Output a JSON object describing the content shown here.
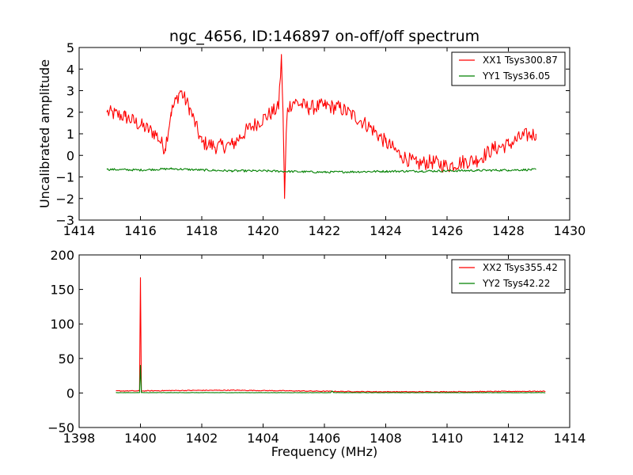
{
  "colors": {
    "xx": "#ff0000",
    "yy": "#008000",
    "frame": "#000000",
    "background": "#ffffff"
  },
  "chart_data": [
    {
      "type": "line",
      "title": "ngc_4656, ID:146897 on-off/off spectrum",
      "xlabel": "",
      "ylabel": "Uncalibrated amplitude",
      "xlim": [
        1414,
        1430
      ],
      "ylim": [
        -3,
        5
      ],
      "xticks": [
        1414,
        1416,
        1418,
        1420,
        1422,
        1424,
        1426,
        1428,
        1430
      ],
      "yticks": [
        -3,
        -2,
        -1,
        0,
        1,
        2,
        3,
        4,
        5
      ],
      "x_tick_labels": [
        "1414",
        "1416",
        "1418",
        "1420",
        "1422",
        "1424",
        "1426",
        "1428",
        "1430"
      ],
      "y_tick_labels": [
        "−3",
        "−2",
        "−1",
        "0",
        "1",
        "2",
        "3",
        "4",
        "5"
      ],
      "legend_position": "top-right",
      "series": [
        {
          "name": "XX1 Tsys300.87",
          "color": "#ff0000",
          "noise": 0.35,
          "x": [
            1414.9,
            1415.5,
            1416.0,
            1416.5,
            1416.8,
            1417.0,
            1417.3,
            1417.6,
            1418.0,
            1418.5,
            1419.0,
            1419.5,
            1420.0,
            1420.5,
            1420.6,
            1420.65,
            1420.7,
            1420.75,
            1420.8,
            1421.0,
            1421.5,
            1422.0,
            1422.5,
            1423.0,
            1423.5,
            1424.0,
            1424.5,
            1425.0,
            1425.5,
            1426.0,
            1426.5,
            1427.0,
            1427.5,
            1428.0,
            1428.5,
            1428.9
          ],
          "y": [
            2.0,
            1.8,
            1.4,
            1.0,
            0.3,
            2.0,
            3.0,
            2.2,
            0.6,
            0.4,
            0.5,
            1.2,
            1.7,
            2.2,
            4.5,
            2.0,
            -2.0,
            0.8,
            2.2,
            2.5,
            2.2,
            2.3,
            2.2,
            1.8,
            1.3,
            0.6,
            0.0,
            -0.4,
            -0.3,
            -0.5,
            -0.3,
            -0.2,
            0.3,
            0.5,
            0.9,
            1.0
          ]
        },
        {
          "name": "YY1 Tsys36.05",
          "color": "#008000",
          "noise": 0.05,
          "x": [
            1414.9,
            1416.0,
            1417.0,
            1418.0,
            1419.0,
            1420.0,
            1421.0,
            1422.0,
            1423.0,
            1424.0,
            1425.0,
            1426.0,
            1427.0,
            1428.0,
            1428.9
          ],
          "y": [
            -0.65,
            -0.68,
            -0.62,
            -0.68,
            -0.72,
            -0.72,
            -0.75,
            -0.78,
            -0.76,
            -0.74,
            -0.73,
            -0.72,
            -0.7,
            -0.68,
            -0.66
          ]
        }
      ]
    },
    {
      "type": "line",
      "title": "",
      "xlabel": "Frequency (MHz)",
      "ylabel": "",
      "xlim": [
        1398,
        1414
      ],
      "ylim": [
        -50,
        200
      ],
      "xticks": [
        1398,
        1400,
        1402,
        1404,
        1406,
        1408,
        1410,
        1412,
        1414
      ],
      "yticks": [
        -50,
        0,
        50,
        100,
        150,
        200
      ],
      "x_tick_labels": [
        "1398",
        "1400",
        "1402",
        "1404",
        "1406",
        "1408",
        "1410",
        "1412",
        "1414"
      ],
      "y_tick_labels": [
        "−50",
        "0",
        "50",
        "100",
        "150",
        "200"
      ],
      "legend_position": "top-right",
      "series": [
        {
          "name": "XX2 Tsys355.42",
          "color": "#ff0000",
          "noise": 0.6,
          "x": [
            1399.2,
            1399.9,
            1399.97,
            1400.0,
            1400.03,
            1400.1,
            1401.0,
            1402.0,
            1403.0,
            1404.0,
            1405.0,
            1406.0,
            1407.0,
            1408.0,
            1409.0,
            1410.0,
            1411.0,
            1412.0,
            1413.2
          ],
          "y": [
            3.0,
            3.0,
            3.0,
            167.0,
            3.0,
            3.0,
            3.5,
            3.8,
            4.0,
            3.5,
            3.0,
            2.5,
            2.0,
            1.8,
            1.7,
            1.8,
            2.0,
            2.3,
            2.5
          ]
        },
        {
          "name": "YY2 Tsys42.22",
          "color": "#008000",
          "noise": 0.2,
          "x": [
            1399.2,
            1399.97,
            1400.0,
            1400.03,
            1406.2,
            1406.25,
            1406.3,
            1413.2
          ],
          "y": [
            0.5,
            0.5,
            40.0,
            0.5,
            0.5,
            3.0,
            0.5,
            0.5
          ]
        }
      ]
    }
  ]
}
